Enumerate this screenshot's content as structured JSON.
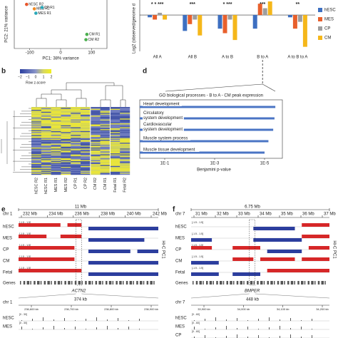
{
  "pca": {
    "ylabel": "PC2: 21% variance",
    "xlabel": "PC1: 38% variance",
    "xlim": [
      -150,
      150
    ],
    "ylim": [
      -60,
      50
    ],
    "xticks": [
      -100,
      0,
      100
    ],
    "points": [
      {
        "label": "hESC R2",
        "x": -110,
        "y": 40,
        "color": "#e8552a"
      },
      {
        "label": "MES R2",
        "x": -85,
        "y": 30,
        "color": "#f08a24"
      },
      {
        "label": "MES R1",
        "x": -80,
        "y": 20,
        "color": "#2aa8b8"
      },
      {
        "label": "CP R1",
        "x": -60,
        "y": 33,
        "color": "#2aa8b8"
      },
      {
        "label": "CM R1",
        "x": 85,
        "y": -28,
        "color": "#4caf50"
      },
      {
        "label": "CM R2",
        "x": 82,
        "y": -40,
        "color": "#4caf50"
      }
    ]
  },
  "compartments": {
    "ylabel": "Log2 (observed/genome d",
    "categories": [
      "All A",
      "All B",
      "A to B",
      "B to A",
      "A to B to A"
    ],
    "ylim": [
      -0.8,
      0.3
    ],
    "significance": [
      "* * ***",
      "***",
      "*  ***",
      "***",
      "**"
    ],
    "series": [
      {
        "name": "hESC",
        "color": "#3d6fc1",
        "values": [
          -0.05,
          -0.35,
          -0.3,
          -0.3,
          -0.05
        ]
      },
      {
        "name": "MES",
        "color": "#e8602c",
        "values": [
          -0.1,
          -0.2,
          -0.4,
          0.25,
          -0.3
        ]
      },
      {
        "name": "CP",
        "color": "#9e9e9e",
        "values": [
          0.05,
          -0.1,
          -0.1,
          0.15,
          -0.15
        ]
      },
      {
        "name": "CM",
        "color": "#f5b71a",
        "values": [
          -0.1,
          -0.45,
          -0.55,
          0.3,
          -0.7
        ]
      }
    ]
  },
  "heatmap": {
    "colorbar_ticks": [
      "−2",
      "−1",
      "0",
      "1",
      "2"
    ],
    "colorbar_label": "Row z-score",
    "columns": [
      "hESC R2",
      "hESC R1",
      "MES R1",
      "MES R2",
      "CP R1",
      "CP R2",
      "CM R2",
      "CM R1",
      "Fetal R1",
      "Fetal R2"
    ]
  },
  "go": {
    "title": "GO biological processes - B to A - CM peak expression",
    "categories": [
      [
        "Heart development"
      ],
      [
        "Circulatory",
        "system development"
      ],
      [
        "Cardiovascular",
        "system development"
      ],
      [
        "Muscle system process"
      ],
      [
        "Muscle tissue development"
      ]
    ],
    "values": [
      3.7e-06,
      4e-06,
      4.5e-06,
      7e-06,
      1e-05
    ],
    "color": "#4a74c4",
    "log": true,
    "xticks": [
      {
        "value": 0.1,
        "label": "1E-1"
      },
      {
        "value": 0.001,
        "label": "1E-3"
      },
      {
        "value": 1e-05,
        "label": "1E-5"
      }
    ],
    "xlabel": "Benjamini p-value"
  },
  "panel_labels": [
    "b",
    "d",
    "e",
    "f"
  ],
  "tracks_e": {
    "span": "11 Mb",
    "chr": "chr 1",
    "ticks": [
      "232 Mb",
      "234 Mb",
      "236 Mb",
      "238 Mb",
      "240 Mb",
      "242 Mb"
    ],
    "tracks": [
      "hESC",
      "MES",
      "CP",
      "CM",
      "Fetal"
    ],
    "range": "[-1.5 - 1.5]",
    "side": "Hi-C PC1",
    "genes": "Genes",
    "gene": "ACTN2",
    "zoom": "374 kb",
    "zoom_ticks": [
      "236,600 kb",
      "236,700 kb",
      "236,800 kb",
      "236,900 kb"
    ],
    "zoom_tracks": [
      "hESC",
      "MES"
    ],
    "zoom_range": "[0 - 30]"
  },
  "tracks_f": {
    "span": "6.75 Mb",
    "chr": "chr 7",
    "ticks": [
      "31 Mb",
      "32 Mb",
      "33 Mb",
      "34 Mb",
      "35 Mb",
      "36 Mb",
      "37 Mb"
    ],
    "tracks": [
      "hESC",
      "MES",
      "CP",
      "CM",
      "Fetal"
    ],
    "range": "[-1.5 - 1.5]",
    "side": "Hi-C PC1",
    "genes": "Genes",
    "gene": "BMPER",
    "zoom": "448 kb",
    "zoom_ticks": [
      "33,900 kb",
      "34,000 kb",
      "34,100 kb",
      "34,200 kb"
    ],
    "zoom_tracks": [
      "hESC",
      "MES",
      "CP"
    ],
    "zoom_range": "[0 - 60]"
  }
}
